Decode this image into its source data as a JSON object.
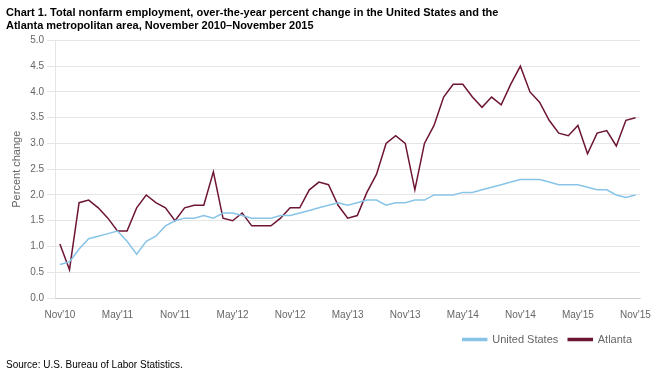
{
  "chart_data": {
    "type": "line",
    "title": [
      "Chart 1. Total nonfarm employment, over-the-year percent change in the United States and the",
      "Atlanta metropolitan area, November 2010–November 2015"
    ],
    "ylabel": "Percent change",
    "annotation": "Source: U.S. Bureau of Labor Statistics.",
    "categories": [
      "Nov'10",
      null,
      null,
      null,
      null,
      null,
      "May'11",
      null,
      null,
      null,
      null,
      null,
      "Nov'11",
      null,
      null,
      null,
      null,
      null,
      "May'12",
      null,
      null,
      null,
      null,
      null,
      "Nov'12",
      null,
      null,
      null,
      null,
      null,
      "May'13",
      null,
      null,
      null,
      null,
      null,
      "Nov'13",
      null,
      null,
      null,
      null,
      null,
      "May'14",
      null,
      null,
      null,
      null,
      null,
      "Nov'14",
      null,
      null,
      null,
      null,
      null,
      "May'15",
      null,
      null,
      null,
      null,
      null,
      "Nov'15"
    ],
    "series": [
      {
        "name": "United States",
        "color": "#88c4e8",
        "values": [
          0.65,
          0.7,
          0.95,
          1.15,
          1.2,
          1.25,
          1.3,
          1.1,
          0.85,
          1.1,
          1.2,
          1.4,
          1.5,
          1.55,
          1.55,
          1.6,
          1.55,
          1.65,
          1.65,
          1.6,
          1.55,
          1.55,
          1.55,
          1.6,
          1.6,
          1.65,
          1.7,
          1.75,
          1.8,
          1.85,
          1.8,
          1.85,
          1.9,
          1.9,
          1.8,
          1.85,
          1.85,
          1.9,
          1.9,
          2.0,
          2.0,
          2.0,
          2.05,
          2.05,
          2.1,
          2.15,
          2.2,
          2.25,
          2.3,
          2.3,
          2.3,
          2.25,
          2.2,
          2.2,
          2.2,
          2.15,
          2.1,
          2.1,
          2.0,
          1.95,
          2.0
        ]
      },
      {
        "name": "Atlanta",
        "color": "#6d1535",
        "values": [
          1.05,
          0.55,
          1.85,
          1.9,
          1.75,
          1.55,
          1.3,
          1.3,
          1.75,
          2.0,
          1.85,
          1.75,
          1.5,
          1.75,
          1.8,
          1.8,
          2.45,
          1.55,
          1.5,
          1.65,
          1.4,
          1.4,
          1.4,
          1.55,
          1.75,
          1.75,
          2.1,
          2.25,
          2.2,
          1.8,
          1.55,
          1.6,
          2.05,
          2.4,
          3.0,
          3.15,
          3.0,
          2.1,
          3.0,
          3.35,
          3.9,
          4.15,
          4.15,
          3.9,
          3.7,
          3.9,
          3.75,
          4.15,
          4.5,
          4.0,
          3.8,
          3.45,
          3.2,
          3.15,
          3.35,
          2.8,
          3.2,
          3.25,
          2.95,
          3.45,
          3.5
        ]
      }
    ],
    "ylim": [
      0.0,
      5.0
    ],
    "yticks": [
      {
        "value": 0,
        "label": "0.0"
      },
      0.5,
      {
        "value": 1,
        "label": "1.0"
      },
      1.5,
      {
        "value": 2,
        "label": "2.0"
      },
      2.5,
      {
        "value": 3,
        "label": "3.0"
      },
      3.5,
      {
        "value": 4,
        "label": "4.0"
      },
      4.5,
      {
        "value": 5,
        "label": "5.0"
      }
    ],
    "grid": "y",
    "legend": "lower right"
  }
}
